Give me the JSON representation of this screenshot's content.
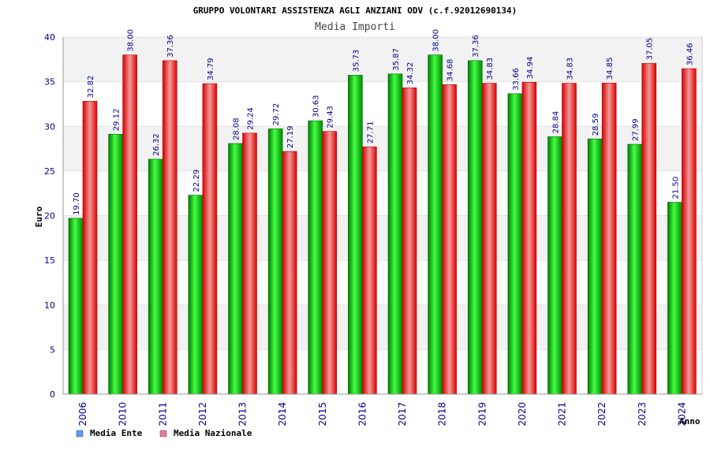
{
  "colors": {
    "series_1": "#00bb00",
    "series_2": "#ee1111",
    "legend_1": "#6699ee",
    "legend_2": "#e07aa0",
    "band": "#f2f2f2",
    "text_blue": "#00008b"
  },
  "chart_data": {
    "type": "bar",
    "title": "GRUPPO VOLONTARI ASSISTENZA AGLI ANZIANI ODV (c.f.92012690134)",
    "subtitle": "Media Importi",
    "xlabel": "Anno",
    "ylabel": "Euro",
    "ylim": [
      0,
      40
    ],
    "yticks": [
      0,
      5,
      10,
      15,
      20,
      25,
      30,
      35,
      40
    ],
    "categories": [
      "2006",
      "2010",
      "2011",
      "2012",
      "2013",
      "2014",
      "2015",
      "2016",
      "2017",
      "2018",
      "2019",
      "2020",
      "2021",
      "2022",
      "2023",
      "2024"
    ],
    "series": [
      {
        "name": "Media Ente",
        "values": [
          19.7,
          29.12,
          26.32,
          22.29,
          28.08,
          29.72,
          30.63,
          35.73,
          35.87,
          38.0,
          37.36,
          33.66,
          28.84,
          28.59,
          27.99,
          21.5
        ],
        "labels": [
          "19.70",
          "29.12",
          "26.32",
          "22.29",
          "28.08",
          "29.72",
          "30.63",
          "35.73",
          "35.87",
          "38.00",
          "37.36",
          "33.66",
          "28.84",
          "28.59",
          "27.99",
          "21.50"
        ]
      },
      {
        "name": "Media Nazionale",
        "values": [
          32.82,
          38.0,
          37.36,
          34.79,
          29.24,
          27.19,
          29.43,
          27.71,
          34.32,
          34.68,
          34.83,
          34.94,
          34.83,
          34.85,
          37.05,
          36.46
        ],
        "labels": [
          "32.82",
          "38.00",
          "37.36",
          "34.79",
          "29.24",
          "27.19",
          "29.43",
          "27.71",
          "34.32",
          "34.68",
          "34.83",
          "34.94",
          "34.83",
          "34.85",
          "37.05",
          "36.46"
        ]
      }
    ],
    "legend_position": "bottom-left"
  }
}
